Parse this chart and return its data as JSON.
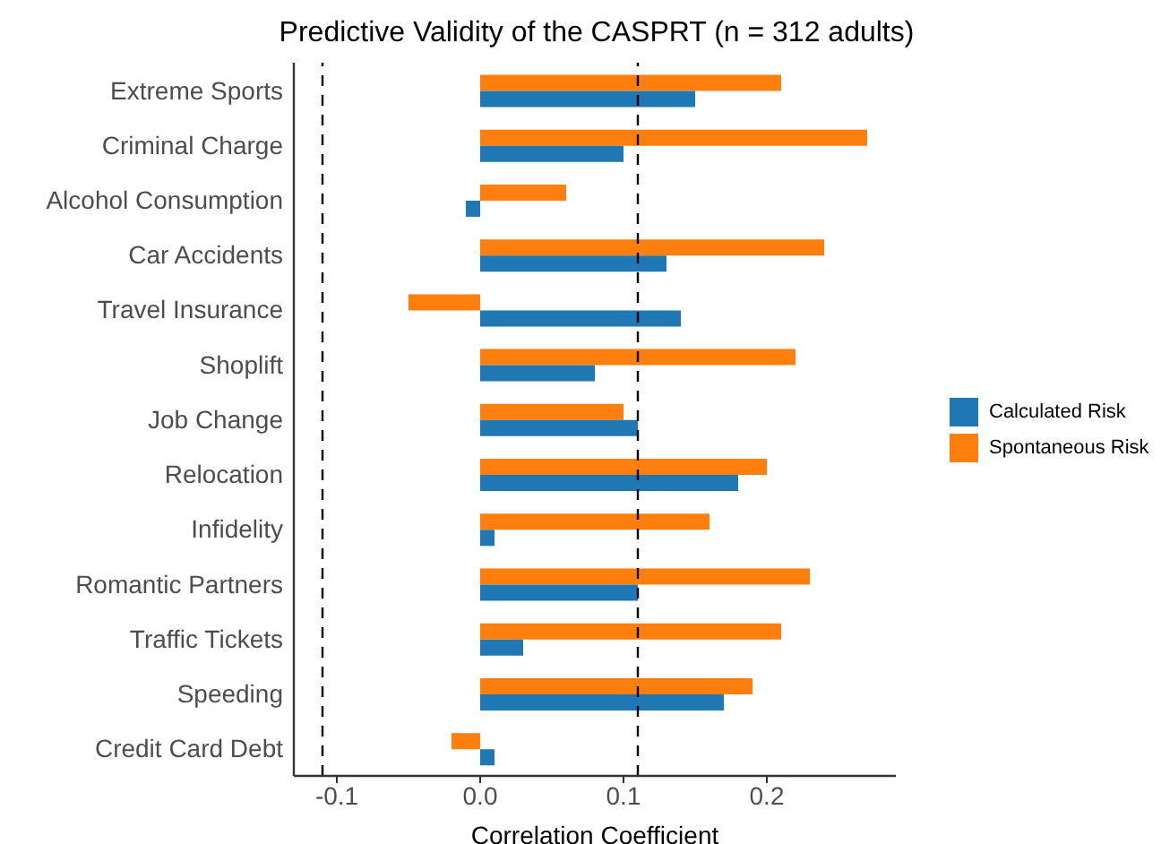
{
  "chart_data": {
    "type": "bar",
    "orientation": "horizontal",
    "title": "Predictive Validity of the CASPRT (n = 312 adults)",
    "xlabel": "Correlation Coefficient",
    "categories": [
      "Extreme Sports",
      "Criminal Charge",
      "Alcohol Consumption",
      "Car Accidents",
      "Travel Insurance",
      "Shoplift",
      "Job Change",
      "Relocation",
      "Infidelity",
      "Romantic Partners",
      "Traffic Tickets",
      "Speeding",
      "Credit Card Debt"
    ],
    "series": [
      {
        "name": "Calculated Risk",
        "color": "#1f77b4",
        "values": [
          0.15,
          0.1,
          -0.01,
          0.13,
          0.14,
          0.08,
          0.11,
          0.18,
          0.01,
          0.11,
          0.03,
          0.17,
          0.01
        ]
      },
      {
        "name": "Spontaneous Risk",
        "color": "#ff7f0e",
        "values": [
          0.21,
          0.27,
          0.06,
          0.24,
          -0.05,
          0.22,
          0.1,
          0.2,
          0.16,
          0.23,
          0.21,
          0.19,
          -0.02
        ]
      }
    ],
    "xlim": [
      -0.13,
      0.29
    ],
    "xticks": [
      {
        "value": -0.1,
        "label": "-0.1"
      },
      {
        "value": 0,
        "label": "0.0"
      },
      {
        "value": 0.1,
        "label": "0.1"
      },
      {
        "value": 0.2,
        "label": "0.2"
      }
    ],
    "ref_lines": [
      {
        "axis": "x",
        "value": -0.11,
        "line_style": "dashed",
        "color": "#000000"
      },
      {
        "axis": "x",
        "value": 0.11,
        "line_style": "dashed",
        "color": "#000000"
      }
    ],
    "grid": false,
    "legend": "right"
  }
}
